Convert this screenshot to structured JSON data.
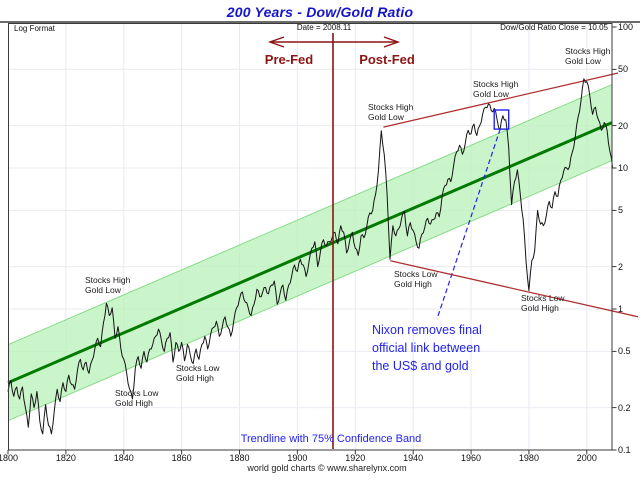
{
  "title": "200 Years - Dow/Gold Ratio",
  "header": {
    "left": "Log Format",
    "center": "Date = 2008.11",
    "right": "Dow/Gold Ratio Close = 10.05"
  },
  "era_labels": {
    "pre": "Pre-Fed",
    "post": "Post-Fed"
  },
  "footer": {
    "trendline_note": "Trendline with 75% Confidence Band",
    "credit": "world gold charts © www.sharelynx.com"
  },
  "colors": {
    "title": "#1414cc",
    "dark_red": "#8b1414",
    "channel_red": "#b03030",
    "trend_green": "#007a00",
    "band_green": "#b8f0b8",
    "band_edge": "#86dc86",
    "note_blue": "#2323ee",
    "series": "#141414",
    "grid": "#e9ebf2",
    "frame": "#3a3a3a"
  },
  "chart_data": {
    "type": "line",
    "title": "200 Years - Dow/Gold Ratio",
    "x_axis": {
      "min": 1800,
      "max": 2008.7,
      "ticks": [
        1800,
        1820,
        1840,
        1860,
        1880,
        1900,
        1920,
        1940,
        1960,
        1980,
        2000
      ]
    },
    "y_axis": {
      "scale": "log",
      "min": 0.1,
      "max": 100,
      "ticks": [
        100,
        50,
        20,
        10,
        5,
        2,
        1,
        0.5,
        0.2,
        0.1
      ]
    },
    "series": [
      {
        "name": "Dow/Gold Ratio",
        "close": 10.05,
        "points": [
          [
            1800,
            0.26
          ],
          [
            1801,
            0.31
          ],
          [
            1802,
            0.24
          ],
          [
            1803,
            0.28
          ],
          [
            1804,
            0.23
          ],
          [
            1805,
            0.28
          ],
          [
            1806,
            0.2
          ],
          [
            1807,
            0.145
          ],
          [
            1808,
            0.25
          ],
          [
            1809,
            0.2
          ],
          [
            1810,
            0.26
          ],
          [
            1811,
            0.16
          ],
          [
            1812,
            0.13
          ],
          [
            1813,
            0.21
          ],
          [
            1814,
            0.15
          ],
          [
            1815,
            0.13
          ],
          [
            1816,
            0.19
          ],
          [
            1817,
            0.27
          ],
          [
            1818,
            0.22
          ],
          [
            1819,
            0.3
          ],
          [
            1820,
            0.26
          ],
          [
            1821,
            0.34
          ],
          [
            1822,
            0.29
          ],
          [
            1823,
            0.27
          ],
          [
            1824,
            0.37
          ],
          [
            1825,
            0.44
          ],
          [
            1826,
            0.37
          ],
          [
            1827,
            0.42
          ],
          [
            1828,
            0.35
          ],
          [
            1829,
            0.43
          ],
          [
            1830,
            0.52
          ],
          [
            1831,
            0.62
          ],
          [
            1832,
            0.54
          ],
          [
            1833,
            0.8
          ],
          [
            1834,
            1.1
          ],
          [
            1835,
            0.9
          ],
          [
            1836,
            1.02
          ],
          [
            1837,
            0.62
          ],
          [
            1838,
            0.75
          ],
          [
            1839,
            0.52
          ],
          [
            1840,
            0.44
          ],
          [
            1841,
            0.35
          ],
          [
            1842,
            0.27
          ],
          [
            1843,
            0.23
          ],
          [
            1844,
            0.38
          ],
          [
            1845,
            0.46
          ],
          [
            1846,
            0.38
          ],
          [
            1847,
            0.5
          ],
          [
            1848,
            0.42
          ],
          [
            1849,
            0.52
          ],
          [
            1850,
            0.56
          ],
          [
            1851,
            0.64
          ],
          [
            1852,
            0.72
          ],
          [
            1853,
            0.6
          ],
          [
            1854,
            0.5
          ],
          [
            1855,
            0.62
          ],
          [
            1856,
            0.68
          ],
          [
            1857,
            0.42
          ],
          [
            1858,
            0.58
          ],
          [
            1859,
            0.5
          ],
          [
            1860,
            0.58
          ],
          [
            1861,
            0.43
          ],
          [
            1862,
            0.56
          ],
          [
            1863,
            0.47
          ],
          [
            1864,
            0.41
          ],
          [
            1865,
            0.52
          ],
          [
            1866,
            0.44
          ],
          [
            1867,
            0.56
          ],
          [
            1868,
            0.64
          ],
          [
            1869,
            0.52
          ],
          [
            1870,
            0.66
          ],
          [
            1871,
            0.74
          ],
          [
            1872,
            0.82
          ],
          [
            1873,
            0.64
          ],
          [
            1874,
            0.74
          ],
          [
            1875,
            0.88
          ],
          [
            1876,
            0.74
          ],
          [
            1877,
            0.64
          ],
          [
            1878,
            0.82
          ],
          [
            1879,
            1.02
          ],
          [
            1880,
            1.18
          ],
          [
            1881,
            1.32
          ],
          [
            1882,
            1.12
          ],
          [
            1883,
            1.02
          ],
          [
            1884,
            0.9
          ],
          [
            1885,
            1.08
          ],
          [
            1886,
            1.38
          ],
          [
            1887,
            1.22
          ],
          [
            1888,
            1.32
          ],
          [
            1889,
            1.42
          ],
          [
            1890,
            1.28
          ],
          [
            1891,
            1.48
          ],
          [
            1892,
            1.58
          ],
          [
            1893,
            1.08
          ],
          [
            1894,
            1.28
          ],
          [
            1895,
            1.48
          ],
          [
            1896,
            1.15
          ],
          [
            1897,
            1.48
          ],
          [
            1898,
            1.7
          ],
          [
            1899,
            2.05
          ],
          [
            1900,
            1.85
          ],
          [
            1901,
            2.25
          ],
          [
            1902,
            2.05
          ],
          [
            1903,
            1.7
          ],
          [
            1904,
            2.15
          ],
          [
            1905,
            2.7
          ],
          [
            1906,
            3.0
          ],
          [
            1907,
            2.0
          ],
          [
            1908,
            2.6
          ],
          [
            1909,
            3.1
          ],
          [
            1910,
            2.8
          ],
          [
            1911,
            3.0
          ],
          [
            1912,
            3.2
          ],
          [
            1913,
            3.5
          ],
          [
            1914,
            2.9
          ],
          [
            1915,
            3.9
          ],
          [
            1916,
            3.5
          ],
          [
            1917,
            2.5
          ],
          [
            1918,
            3.0
          ],
          [
            1919,
            3.5
          ],
          [
            1920,
            2.7
          ],
          [
            1921,
            2.4
          ],
          [
            1922,
            3.3
          ],
          [
            1923,
            3.2
          ],
          [
            1924,
            3.9
          ],
          [
            1925,
            4.8
          ],
          [
            1926,
            5.0
          ],
          [
            1927,
            6.5
          ],
          [
            1928,
            9.5
          ],
          [
            1929,
            18.4
          ],
          [
            1930,
            12.5
          ],
          [
            1931,
            6.5
          ],
          [
            1932,
            2.25
          ],
          [
            1933,
            3.9
          ],
          [
            1934,
            3.3
          ],
          [
            1935,
            3.7
          ],
          [
            1936,
            4.4
          ],
          [
            1937,
            4.9
          ],
          [
            1938,
            3.3
          ],
          [
            1939,
            4.1
          ],
          [
            1940,
            3.6
          ],
          [
            1941,
            3.0
          ],
          [
            1942,
            2.7
          ],
          [
            1943,
            3.4
          ],
          [
            1944,
            3.8
          ],
          [
            1945,
            4.4
          ],
          [
            1946,
            4.0
          ],
          [
            1947,
            4.3
          ],
          [
            1948,
            4.8
          ],
          [
            1949,
            4.5
          ],
          [
            1950,
            6.3
          ],
          [
            1951,
            7.5
          ],
          [
            1952,
            8.3
          ],
          [
            1953,
            8.0
          ],
          [
            1954,
            10.5
          ],
          [
            1955,
            13.0
          ],
          [
            1956,
            14.5
          ],
          [
            1957,
            12.5
          ],
          [
            1958,
            15.0
          ],
          [
            1959,
            18.5
          ],
          [
            1960,
            17.5
          ],
          [
            1961,
            20.5
          ],
          [
            1962,
            17.0
          ],
          [
            1963,
            20.0
          ],
          [
            1964,
            24.0
          ],
          [
            1965,
            27.0
          ],
          [
            1966,
            28.5
          ],
          [
            1967,
            25.5
          ],
          [
            1968,
            26.5
          ],
          [
            1969,
            22.0
          ],
          [
            1970,
            18.5
          ],
          [
            1971,
            23.5
          ],
          [
            1972,
            22.0
          ],
          [
            1973,
            14.0
          ],
          [
            1974,
            5.5
          ],
          [
            1975,
            8.0
          ],
          [
            1976,
            9.7
          ],
          [
            1977,
            6.5
          ],
          [
            1978,
            4.3
          ],
          [
            1979,
            2.2
          ],
          [
            1980,
            1.35
          ],
          [
            1981,
            2.2
          ],
          [
            1982,
            2.6
          ],
          [
            1983,
            5.0
          ],
          [
            1984,
            4.0
          ],
          [
            1985,
            3.9
          ],
          [
            1986,
            4.6
          ],
          [
            1987,
            5.8
          ],
          [
            1988,
            5.2
          ],
          [
            1989,
            6.8
          ],
          [
            1990,
            6.3
          ],
          [
            1991,
            8.2
          ],
          [
            1992,
            9.5
          ],
          [
            1993,
            10.0
          ],
          [
            1994,
            10.2
          ],
          [
            1995,
            13.0
          ],
          [
            1996,
            16.5
          ],
          [
            1997,
            23.0
          ],
          [
            1998,
            30.0
          ],
          [
            1999,
            43.0
          ],
          [
            2000,
            41.0
          ],
          [
            2001,
            33.0
          ],
          [
            2002,
            24.0
          ],
          [
            2003,
            27.0
          ],
          [
            2004,
            22.0
          ],
          [
            2005,
            18.5
          ],
          [
            2006,
            21.0
          ],
          [
            2007,
            18.5
          ],
          [
            2008,
            13.0
          ],
          [
            2008.9,
            10.05
          ]
        ]
      }
    ],
    "trendline": {
      "start": [
        1800,
        0.3
      ],
      "end": [
        2008.7,
        21
      ],
      "confidence_band_factor": 1.86,
      "label": "Trendline with 75% Confidence Band"
    },
    "channel_lines": [
      {
        "start": [
          1929.7,
          19.5
        ],
        "end": [
          2010.8,
          47.2
        ]
      },
      {
        "start": [
          1932.1,
          2.2
        ],
        "end": [
          2017.7,
          0.88
        ]
      }
    ],
    "fed_line_year": 1912.3,
    "nixon_box": {
      "year_start": 1968,
      "year_end": 1973,
      "value_low": 18.9,
      "value_high": 25.8
    },
    "nixon_note": {
      "lines": [
        "Nixon removes final",
        "official link between",
        "the US$ and gold"
      ],
      "x": 372,
      "y": 321
    },
    "annotations": [
      {
        "lines": [
          "Stocks High",
          "Gold Low"
        ],
        "x": 85,
        "y": 276
      },
      {
        "lines": [
          "Stocks Low",
          "Gold High"
        ],
        "x": 115,
        "y": 389
      },
      {
        "lines": [
          "Stocks Low",
          "Gold High"
        ],
        "x": 176,
        "y": 364
      },
      {
        "lines": [
          "Stocks High",
          "Gold Low"
        ],
        "x": 368,
        "y": 103
      },
      {
        "lines": [
          "Stocks Low",
          "Gold High"
        ],
        "x": 394,
        "y": 270
      },
      {
        "lines": [
          "Stocks High",
          "Gold Low"
        ],
        "x": 473,
        "y": 80
      },
      {
        "lines": [
          "Stocks Low",
          "Gold High"
        ],
        "x": 521,
        "y": 294
      },
      {
        "lines": [
          "Stocks High",
          "Gold Low"
        ],
        "x": 565,
        "y": 47
      }
    ]
  }
}
